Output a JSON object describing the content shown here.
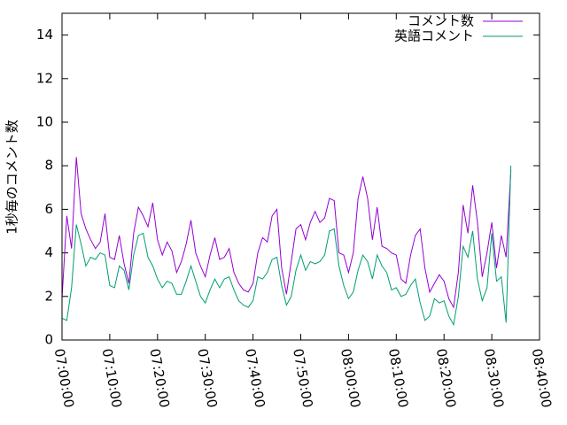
{
  "chart_data": {
    "type": "line",
    "ylabel": "1秒毎のコメント数",
    "x": [
      "07:00:00",
      "07:01:00",
      "07:02:00",
      "07:03:00",
      "07:04:00",
      "07:05:00",
      "07:06:00",
      "07:07:00",
      "07:08:00",
      "07:09:00",
      "07:10:00",
      "07:11:00",
      "07:12:00",
      "07:13:00",
      "07:14:00",
      "07:15:00",
      "07:16:00",
      "07:17:00",
      "07:18:00",
      "07:19:00",
      "07:20:00",
      "07:21:00",
      "07:22:00",
      "07:23:00",
      "07:24:00",
      "07:25:00",
      "07:26:00",
      "07:27:00",
      "07:28:00",
      "07:29:00",
      "07:30:00",
      "07:31:00",
      "07:32:00",
      "07:33:00",
      "07:34:00",
      "07:35:00",
      "07:36:00",
      "07:37:00",
      "07:38:00",
      "07:39:00",
      "07:40:00",
      "07:41:00",
      "07:42:00",
      "07:43:00",
      "07:44:00",
      "07:45:00",
      "07:46:00",
      "07:47:00",
      "07:48:00",
      "07:49:00",
      "07:50:00",
      "07:51:00",
      "07:52:00",
      "07:53:00",
      "07:54:00",
      "07:55:00",
      "07:56:00",
      "07:57:00",
      "07:58:00",
      "07:59:00",
      "08:00:00",
      "08:01:00",
      "08:02:00",
      "08:03:00",
      "08:04:00",
      "08:05:00",
      "08:06:00",
      "08:07:00",
      "08:08:00",
      "08:09:00",
      "08:10:00",
      "08:11:00",
      "08:12:00",
      "08:13:00",
      "08:14:00",
      "08:15:00",
      "08:16:00",
      "08:17:00",
      "08:18:00",
      "08:19:00",
      "08:20:00",
      "08:21:00",
      "08:22:00",
      "08:23:00",
      "08:24:00",
      "08:25:00",
      "08:26:00",
      "08:27:00",
      "08:28:00",
      "08:29:00",
      "08:30:00",
      "08:31:00",
      "08:32:00",
      "08:33:00",
      "08:34:00"
    ],
    "series": [
      {
        "name": "コメント数",
        "color": "#9400d3",
        "values": [
          1.9,
          5.7,
          4.2,
          8.4,
          5.8,
          5.1,
          4.6,
          4.2,
          4.5,
          5.8,
          3.8,
          3.7,
          4.8,
          3.5,
          2.6,
          4.9,
          6.1,
          5.7,
          5.2,
          6.3,
          4.6,
          3.9,
          4.5,
          4.1,
          3.1,
          3.6,
          4.4,
          5.5,
          4.0,
          3.4,
          2.9,
          3.9,
          4.7,
          3.7,
          3.8,
          4.2,
          3.1,
          2.6,
          2.3,
          2.2,
          2.6,
          4.0,
          4.7,
          4.5,
          5.7,
          6.0,
          3.3,
          2.1,
          3.6,
          5.1,
          5.3,
          4.6,
          5.4,
          5.9,
          5.4,
          5.6,
          6.5,
          6.4,
          4.0,
          3.9,
          3.1,
          4.0,
          6.5,
          7.5,
          6.5,
          4.6,
          6.1,
          4.3,
          4.2,
          4.0,
          3.9,
          2.8,
          2.6,
          3.9,
          4.8,
          5.1,
          3.3,
          2.2,
          2.6,
          3.0,
          2.7,
          1.9,
          1.5,
          3.1,
          6.2,
          4.9,
          7.1,
          5.4,
          2.9,
          4.0,
          5.4,
          3.3,
          4.8,
          3.8,
          7.8
        ]
      },
      {
        "name": "英語コメント",
        "color": "#009e73",
        "values": [
          1.0,
          0.9,
          2.4,
          5.3,
          4.4,
          3.4,
          3.8,
          3.7,
          4.0,
          3.9,
          2.5,
          2.4,
          3.4,
          3.2,
          2.3,
          3.9,
          4.8,
          4.9,
          3.8,
          3.4,
          2.8,
          2.4,
          2.7,
          2.6,
          2.1,
          2.1,
          2.7,
          3.4,
          2.7,
          2.0,
          1.7,
          2.3,
          2.8,
          2.4,
          2.8,
          2.9,
          2.3,
          1.8,
          1.6,
          1.5,
          1.8,
          2.9,
          2.8,
          3.1,
          3.7,
          3.8,
          2.5,
          1.6,
          2.0,
          3.2,
          3.9,
          3.2,
          3.6,
          3.5,
          3.6,
          3.9,
          5.0,
          5.1,
          3.4,
          2.5,
          1.9,
          2.2,
          3.2,
          3.9,
          3.6,
          2.8,
          3.9,
          3.4,
          3.1,
          2.3,
          2.4,
          2.0,
          2.1,
          2.5,
          2.8,
          1.7,
          0.9,
          1.1,
          1.9,
          1.7,
          1.8,
          1.1,
          0.7,
          2.0,
          4.3,
          3.8,
          5.0,
          2.8,
          1.8,
          2.4,
          4.9,
          2.7,
          2.9,
          0.8,
          8.0
        ]
      }
    ],
    "xlim": [
      "07:00:00",
      "08:40:00"
    ],
    "xticks": [
      "07:00:00",
      "07:10:00",
      "07:20:00",
      "07:30:00",
      "07:40:00",
      "07:50:00",
      "08:00:00",
      "08:10:00",
      "08:20:00",
      "08:30:00",
      "08:40:00"
    ],
    "ylim": [
      0,
      15
    ],
    "yticks": [
      0,
      2,
      4,
      6,
      8,
      10,
      12,
      14
    ],
    "legend": "top-right"
  }
}
